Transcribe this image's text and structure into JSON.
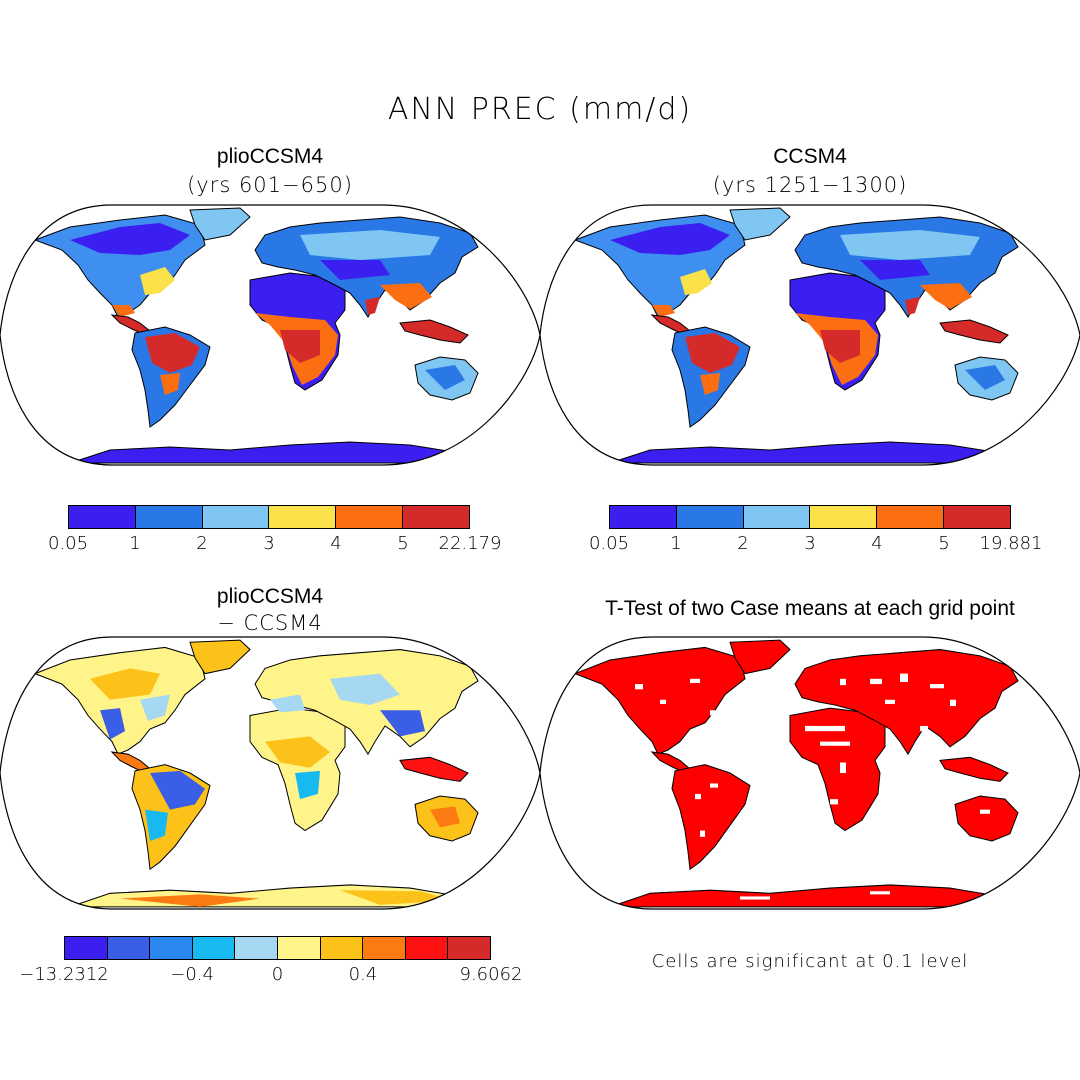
{
  "main_title": "ANN PREC (mm/d)",
  "panels": {
    "top_left": {
      "title": "plioCCSM4",
      "subtitle": "(yrs 601−650)",
      "colorbar": {
        "colors": [
          "#3a1ff0",
          "#2a78e6",
          "#7fc6f2",
          "#fbe14a",
          "#fb6f12",
          "#d42a2a"
        ],
        "ticks": [
          "0.05",
          "1",
          "2",
          "3",
          "4",
          "5",
          "22.179"
        ]
      }
    },
    "top_right": {
      "title": "CCSM4",
      "subtitle": "(yrs 1251−1300)",
      "colorbar": {
        "colors": [
          "#3a1ff0",
          "#2a78e6",
          "#7fc6f2",
          "#fbe14a",
          "#fb6f12",
          "#d42a2a"
        ],
        "ticks": [
          "0.05",
          "1",
          "2",
          "3",
          "4",
          "5",
          "19.881"
        ]
      }
    },
    "bottom_left": {
      "title": "plioCCSM4",
      "subtitle": "− CCSM4",
      "colorbar": {
        "colors": [
          "#3a1ff0",
          "#3a5ee6",
          "#2a88ee",
          "#18b8f0",
          "#a6d8f2",
          "#fff48a",
          "#fcc21a",
          "#fb7a12",
          "#ff1212",
          "#d42a2a"
        ],
        "ticks": [
          {
            "label": "−13.2312",
            "at": 0
          },
          {
            "label": "−0.4",
            "at": 3
          },
          {
            "label": "0",
            "at": 5
          },
          {
            "label": "0.4",
            "at": 7
          },
          {
            "label": "9.6062",
            "at": 10
          }
        ]
      }
    },
    "bottom_right": {
      "title": "T-Test of two Case means at each grid point",
      "note": "Cells are significant at 0.1 level",
      "fill_color": "#ff0000"
    }
  }
}
